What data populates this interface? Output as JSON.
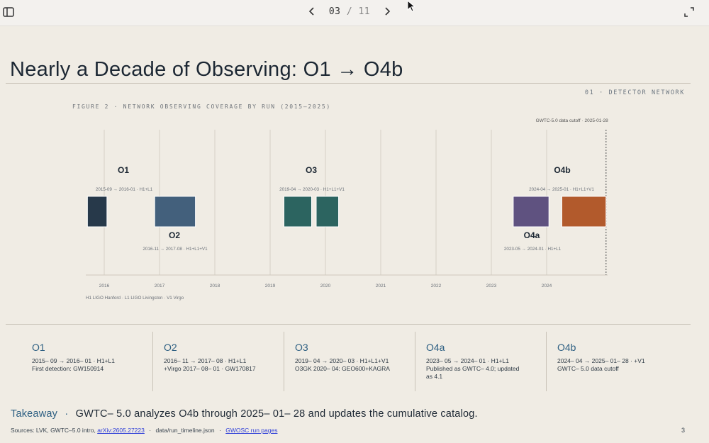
{
  "toolbar": {
    "page_current": "03",
    "page_separator": "/",
    "page_total": "11",
    "icons": [
      "sidebar-toggle-icon",
      "chevron-left-icon",
      "chevron-right-icon",
      "expand-icon",
      "cursor-icon"
    ]
  },
  "slide": {
    "title": "Nearly a Decade of Observing: O1 → O4b",
    "section_label": "01 · DETECTOR NETWORK",
    "figure_caption": "FIGURE 2 · NETWORK OBSERVING COVERAGE BY RUN (2015–2025)"
  },
  "chart_data": {
    "type": "bar",
    "annotation": "GWTC-5.0 data cutoff · 2025-01-28",
    "legend": "H1 LIGO Hanford · L1 LIGO Livingston · V1 Virgo",
    "x_ticks": [
      "2016",
      "2017",
      "2018",
      "2019",
      "2020",
      "2021",
      "2022",
      "2023",
      "2024"
    ],
    "xlim": [
      "2015-07-01",
      "2025-02-01"
    ],
    "cutoff": "2025-01-28",
    "series": [
      {
        "name": "O1",
        "sub": "2015-09 → 2016-01 · H1+L1",
        "start": "2015-09-12",
        "end": "2016-01-19",
        "color": "#27394a"
      },
      {
        "name": "O2",
        "sub": "2016-11 → 2017-08 · H1+L1+V1",
        "start": "2016-11-30",
        "end": "2017-08-25",
        "color": "#43607c"
      },
      {
        "name": "O3",
        "sub": "2019-04 → 2020-03 · H1+L1+V1",
        "start": "2019-04-01",
        "end": "2020-03-27",
        "color": "#2c6460",
        "gap_start": "2019-10-01",
        "gap_end": "2019-11-01"
      },
      {
        "name": "O4a",
        "sub": "2023-05 → 2024-01 · H1+L1",
        "start": "2023-05-24",
        "end": "2024-01-16",
        "color": "#5f5280"
      },
      {
        "name": "O4b",
        "sub": "2024-04 → 2025-01 · H1+L1+V1",
        "start": "2024-04-10",
        "end": "2025-01-28",
        "color": "#b25a2c"
      }
    ]
  },
  "cards": [
    {
      "title": "O1",
      "line1": "2015– 09 → 2016– 01 · H1+L1",
      "line2": "First detection: GW150914"
    },
    {
      "title": "O2",
      "line1": "2016– 11 → 2017– 08 · H1+L1",
      "line2": "+Virgo 2017– 08– 01 · GW170817"
    },
    {
      "title": "O3",
      "line1": "2019– 04 → 2020– 03 · H1+L1+V1",
      "line2": "O3GK 2020– 04: GEO600+KAGRA"
    },
    {
      "title": "O4a",
      "line1": "2023– 05 → 2024– 01 · H1+L1",
      "line2": "Published as GWTC– 4.0; updated",
      "line3": "as 4.1"
    },
    {
      "title": "O4b",
      "line1": "2024– 04 → 2025– 01– 28 · +V1",
      "line2": "GWTC– 5.0 data cutoff"
    }
  ],
  "takeaway": {
    "label": "Takeaway",
    "separator": "·",
    "text": "GWTC– 5.0 analyzes O4b through 2025– 01– 28 and updates the cumulative catalog."
  },
  "sources": {
    "prefix": "Sources: LVK, GWTC–5.0 intro,",
    "link1": "arXiv:2605.27223",
    "sep": "·",
    "file": "data/run_timeline.json",
    "link2": "GWOSC run pages"
  },
  "page_number": "3"
}
